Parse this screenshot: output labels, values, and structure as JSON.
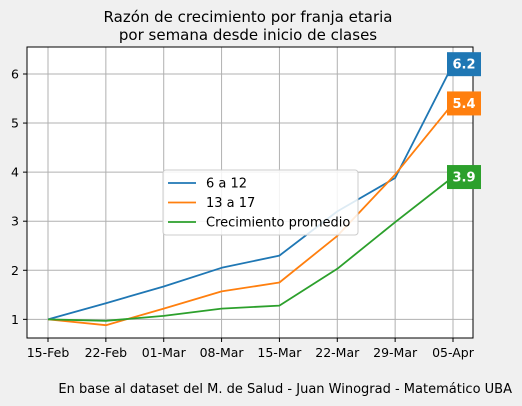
{
  "chart_data": {
    "type": "line",
    "title_line1": "Razón de crecimiento por franja etaria",
    "title_line2": "por semana desde inicio de clases",
    "categories": [
      "15-Feb",
      "22-Feb",
      "01-Mar",
      "08-Mar",
      "15-Mar",
      "22-Mar",
      "29-Mar",
      "05-Apr"
    ],
    "yticks": [
      "1",
      "2",
      "3",
      "4",
      "5",
      "6"
    ],
    "ylim": [
      0.62,
      6.55
    ],
    "grid": true,
    "legend_placement": "center",
    "series": [
      {
        "name": "6 a 12",
        "color": "#1f77b4",
        "values": [
          1.0,
          1.33,
          1.67,
          2.05,
          2.3,
          3.2,
          3.88,
          6.2
        ],
        "end_label": "6.2"
      },
      {
        "name": "13 a 17",
        "color": "#ff7f0e",
        "values": [
          1.0,
          0.88,
          1.22,
          1.57,
          1.75,
          2.7,
          3.95,
          5.4
        ],
        "end_label": "5.4"
      },
      {
        "name": "Crecimiento promedio",
        "color": "#2ca02c",
        "values": [
          1.0,
          0.97,
          1.07,
          1.22,
          1.28,
          2.03,
          2.98,
          3.9
        ],
        "end_label": "3.9"
      }
    ],
    "source_note": "En base al dataset del M. de Salud - Juan Winograd - Matemático UBA"
  }
}
